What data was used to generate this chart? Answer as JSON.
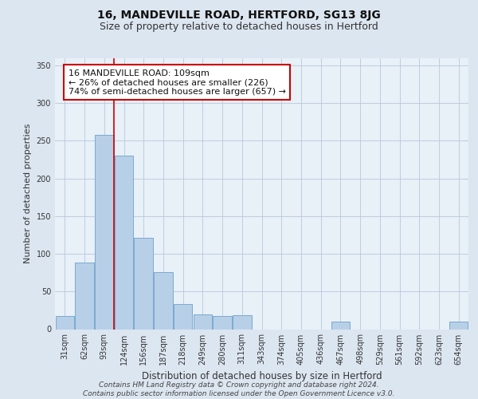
{
  "title": "16, MANDEVILLE ROAD, HERTFORD, SG13 8JG",
  "subtitle": "Size of property relative to detached houses in Hertford",
  "xlabel": "Distribution of detached houses by size in Hertford",
  "ylabel": "Number of detached properties",
  "categories": [
    "31sqm",
    "62sqm",
    "93sqm",
    "124sqm",
    "156sqm",
    "187sqm",
    "218sqm",
    "249sqm",
    "280sqm",
    "311sqm",
    "343sqm",
    "374sqm",
    "405sqm",
    "436sqm",
    "467sqm",
    "498sqm",
    "529sqm",
    "561sqm",
    "592sqm",
    "623sqm",
    "654sqm"
  ],
  "values": [
    18,
    88,
    258,
    230,
    121,
    76,
    33,
    20,
    18,
    19,
    0,
    0,
    0,
    0,
    10,
    0,
    0,
    0,
    0,
    0,
    10
  ],
  "bar_color": "#b8cfe8",
  "bar_edge_color": "#7aaad0",
  "vline_x_index": 2.5,
  "vline_color": "#cc0000",
  "annotation_text": "16 MANDEVILLE ROAD: 109sqm\n← 26% of detached houses are smaller (226)\n74% of semi-detached houses are larger (657) →",
  "annotation_box_color": "#ffffff",
  "annotation_box_edge": "#cc0000",
  "ylim": [
    0,
    360
  ],
  "yticks": [
    0,
    50,
    100,
    150,
    200,
    250,
    300,
    350
  ],
  "bg_color": "#dce6f0",
  "plot_bg_color": "#e8f0f8",
  "footer": "Contains HM Land Registry data © Crown copyright and database right 2024.\nContains public sector information licensed under the Open Government Licence v3.0.",
  "title_fontsize": 10,
  "subtitle_fontsize": 9,
  "xlabel_fontsize": 8.5,
  "ylabel_fontsize": 8,
  "tick_fontsize": 7,
  "annotation_fontsize": 8,
  "footer_fontsize": 6.5
}
